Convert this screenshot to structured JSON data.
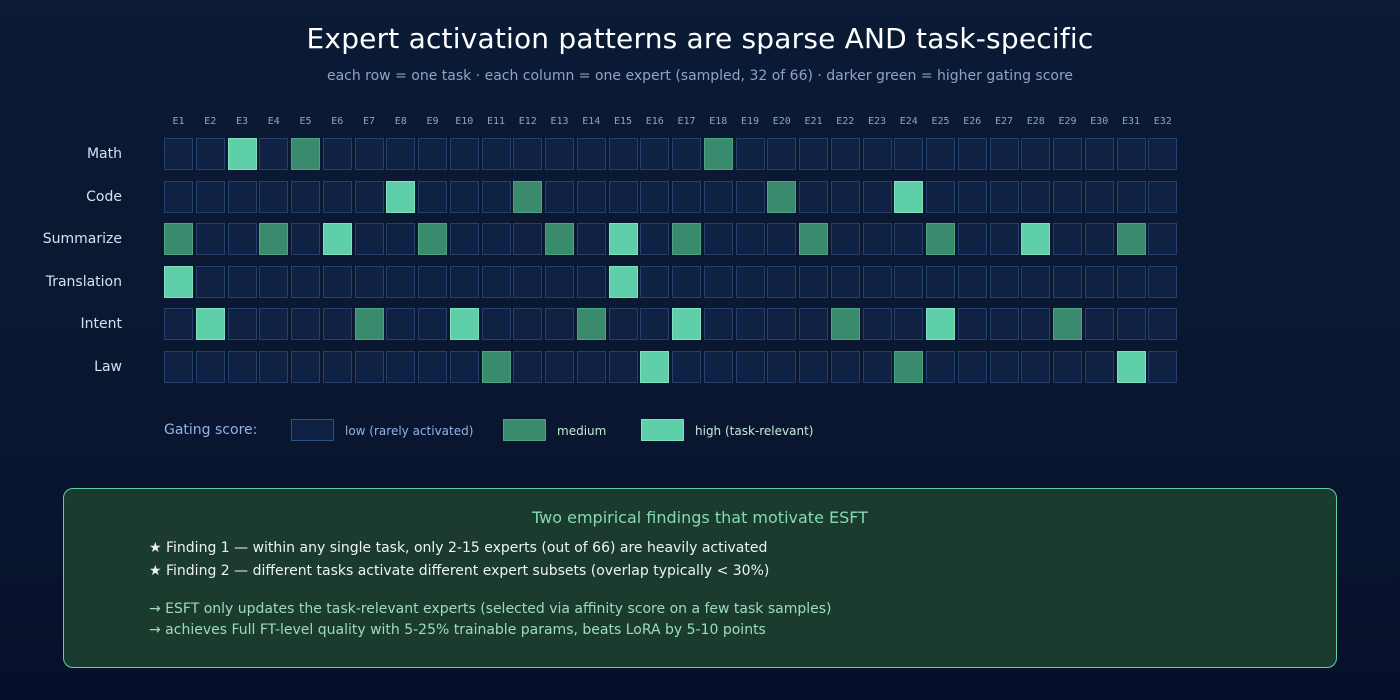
{
  "title": "Expert activation patterns are sparse AND task-specific",
  "subtitle": "each row = one task · each column = one expert (sampled, 32 of 66) · darker green = higher gating score",
  "colors": {
    "low": "#0f2244",
    "medium": "#3a8a6e",
    "high": "#5ecfa8"
  },
  "chart_data": {
    "type": "heatmap",
    "columns": [
      "E1",
      "E2",
      "E3",
      "E4",
      "E5",
      "E6",
      "E7",
      "E8",
      "E9",
      "E10",
      "E11",
      "E12",
      "E13",
      "E14",
      "E15",
      "E16",
      "E17",
      "E18",
      "E19",
      "E20",
      "E21",
      "E22",
      "E23",
      "E24",
      "E25",
      "E26",
      "E27",
      "E28",
      "E29",
      "E30",
      "E31",
      "E32"
    ],
    "rows": [
      {
        "task": "Math",
        "activations": [
          {
            "expert": "E3",
            "level": "high"
          },
          {
            "expert": "E5",
            "level": "medium"
          },
          {
            "expert": "E18",
            "level": "medium"
          }
        ]
      },
      {
        "task": "Code",
        "activations": [
          {
            "expert": "E8",
            "level": "high"
          },
          {
            "expert": "E12",
            "level": "medium"
          },
          {
            "expert": "E20",
            "level": "medium"
          },
          {
            "expert": "E24",
            "level": "high"
          }
        ]
      },
      {
        "task": "Summarize",
        "activations": [
          {
            "expert": "E1",
            "level": "medium"
          },
          {
            "expert": "E4",
            "level": "medium"
          },
          {
            "expert": "E6",
            "level": "high"
          },
          {
            "expert": "E9",
            "level": "medium"
          },
          {
            "expert": "E13",
            "level": "medium"
          },
          {
            "expert": "E15",
            "level": "high"
          },
          {
            "expert": "E17",
            "level": "medium"
          },
          {
            "expert": "E21",
            "level": "medium"
          },
          {
            "expert": "E25",
            "level": "medium"
          },
          {
            "expert": "E28",
            "level": "high"
          },
          {
            "expert": "E31",
            "level": "medium"
          }
        ]
      },
      {
        "task": "Translation",
        "activations": [
          {
            "expert": "E1",
            "level": "high"
          },
          {
            "expert": "E15",
            "level": "high"
          }
        ]
      },
      {
        "task": "Intent",
        "activations": [
          {
            "expert": "E2",
            "level": "high"
          },
          {
            "expert": "E7",
            "level": "medium"
          },
          {
            "expert": "E10",
            "level": "high"
          },
          {
            "expert": "E14",
            "level": "medium"
          },
          {
            "expert": "E17",
            "level": "high"
          },
          {
            "expert": "E22",
            "level": "medium"
          },
          {
            "expert": "E25",
            "level": "high"
          },
          {
            "expert": "E29",
            "level": "medium"
          }
        ]
      },
      {
        "task": "Law",
        "activations": [
          {
            "expert": "E11",
            "level": "medium"
          },
          {
            "expert": "E16",
            "level": "high"
          },
          {
            "expert": "E24",
            "level": "medium"
          },
          {
            "expert": "E31",
            "level": "high"
          }
        ]
      }
    ],
    "levels": [
      "low",
      "medium",
      "high"
    ]
  },
  "legend": {
    "title": "Gating score:",
    "items": [
      {
        "level": "low",
        "label": "low (rarely activated)",
        "text_color": "#8fb4e8"
      },
      {
        "level": "medium",
        "label": "medium",
        "text_color": "#c6ebd8"
      },
      {
        "level": "high",
        "label": "high (task-relevant)",
        "text_color": "#c6ebd8"
      }
    ]
  },
  "findings": {
    "title": "Two empirical findings that motivate ESFT",
    "items": [
      "★ Finding 1 — within any single task, only 2-15 experts (out of 66) are heavily activated",
      "★ Finding 2 — different tasks activate different expert subsets (overlap typically < 30%)"
    ],
    "conclusions": [
      "→ ESFT only updates the task-relevant experts (selected via affinity score on a few task samples)",
      "→ achieves Full FT-level quality with 5-25% trainable params, beats LoRA by 5-10 points"
    ]
  }
}
